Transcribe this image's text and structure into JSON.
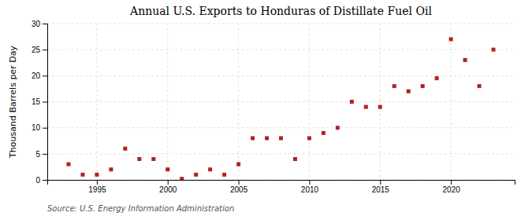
{
  "chart_data": {
    "type": "scatter",
    "title": "Annual U.S. Exports to Honduras of Distillate Fuel Oil",
    "y_label": "Thousand Barrels per Day",
    "annotation": "Source: U.S. Energy Information Administration",
    "x": [
      1993,
      1994,
      1995,
      1996,
      1997,
      1998,
      1999,
      2000,
      2001,
      2002,
      2003,
      2004,
      2005,
      2006,
      2007,
      2008,
      2009,
      2010,
      2011,
      2012,
      2013,
      2014,
      2015,
      2016,
      2017,
      2018,
      2019,
      2020,
      2021,
      2022,
      2023
    ],
    "values": [
      3.0,
      1.0,
      1.0,
      2.0,
      6.0,
      4.0,
      4.0,
      2.0,
      0.2,
      1.0,
      2.0,
      1.0,
      3.0,
      8.0,
      8.0,
      8.0,
      4.0,
      8.0,
      9.0,
      10.0,
      15.0,
      14.0,
      14.0,
      18.0,
      17.0,
      18.0,
      19.5,
      27.0,
      23.0,
      18.0,
      25.0
    ],
    "color": "#b22222",
    "marker": "square",
    "xlim": [
      1991.5,
      2024.5
    ],
    "ylim": [
      0,
      30
    ],
    "xticks": [
      1995,
      2000,
      2005,
      2010,
      2015,
      2020
    ],
    "yticks": [
      0,
      5,
      10,
      15,
      20,
      25,
      30
    ],
    "grid": true
  }
}
